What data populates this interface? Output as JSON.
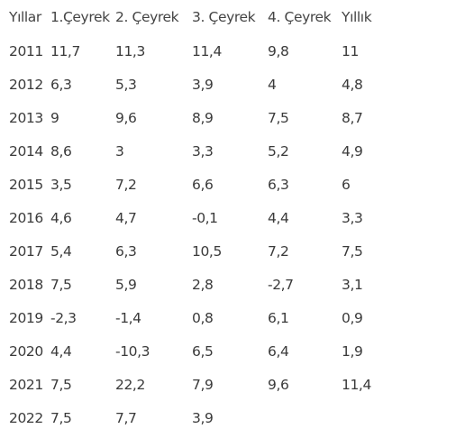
{
  "table": {
    "headers": [
      "Yıllar",
      "1.Çeyrek",
      "2. Çeyrek",
      "3. Çeyrek",
      "4. Çeyrek",
      "Yıllık"
    ],
    "rows": [
      [
        "2011",
        "11,7",
        "11,3",
        "11,4",
        "9,8",
        "11"
      ],
      [
        "2012",
        "6,3",
        "5,3",
        "3,9",
        "4",
        "4,8"
      ],
      [
        "2013",
        "9",
        "9,6",
        "8,9",
        "7,5",
        "8,7"
      ],
      [
        "2014",
        "8,6",
        "3",
        "3,3",
        "5,2",
        "4,9"
      ],
      [
        "2015",
        "3,5",
        "7,2",
        "6,6",
        "6,3",
        "6"
      ],
      [
        "2016",
        "4,6",
        "4,7",
        "-0,1",
        "4,4",
        "3,3"
      ],
      [
        "2017",
        "5,4",
        "6,3",
        "10,5",
        "7,2",
        "7,5"
      ],
      [
        "2018",
        "7,5",
        "5,9",
        "2,8",
        "-2,7",
        "3,1"
      ],
      [
        "2019",
        "-2,3",
        "-1,4",
        "0,8",
        "6,1",
        "0,9"
      ],
      [
        "2020",
        "4,4",
        "-10,3",
        "6,5",
        "6,4",
        "1,9"
      ],
      [
        "2021",
        "7,5",
        "22,2",
        "7,9",
        "9,6",
        "11,4"
      ],
      [
        "2022",
        "7,5",
        "7,7",
        "3,9",
        "",
        ""
      ]
    ]
  }
}
